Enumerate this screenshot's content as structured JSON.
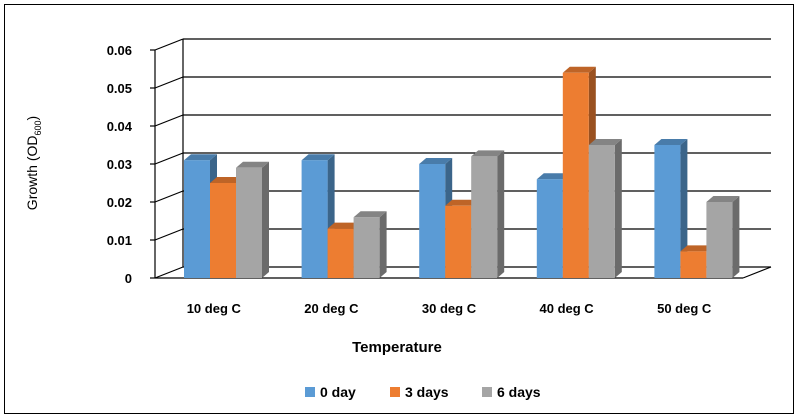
{
  "chart_data": {
    "type": "bar",
    "title": "",
    "xlabel": "Temperature",
    "ylabel": "Growth (OD",
    "ylabel_sub": "600",
    "ylabel_close": ")",
    "categories": [
      "10 deg C",
      "20 deg C",
      "30 deg C",
      "40 deg C",
      "50 deg C"
    ],
    "series": [
      {
        "name": "0 day",
        "color": "#5B9BD5",
        "values": [
          0.031,
          0.031,
          0.03,
          0.026,
          0.035
        ]
      },
      {
        "name": "3 days",
        "color": "#ED7D31",
        "values": [
          0.025,
          0.013,
          0.019,
          0.054,
          0.007
        ]
      },
      {
        "name": "6 days",
        "color": "#A5A5A5",
        "values": [
          0.029,
          0.016,
          0.032,
          0.035,
          0.02
        ]
      }
    ],
    "ylim": [
      0,
      0.06
    ],
    "yticks": [
      "0",
      "0.01",
      "0.02",
      "0.03",
      "0.04",
      "0.05",
      "0.06"
    ],
    "grid": true,
    "legend_position": "bottom",
    "style": "3d-clustered-column"
  }
}
